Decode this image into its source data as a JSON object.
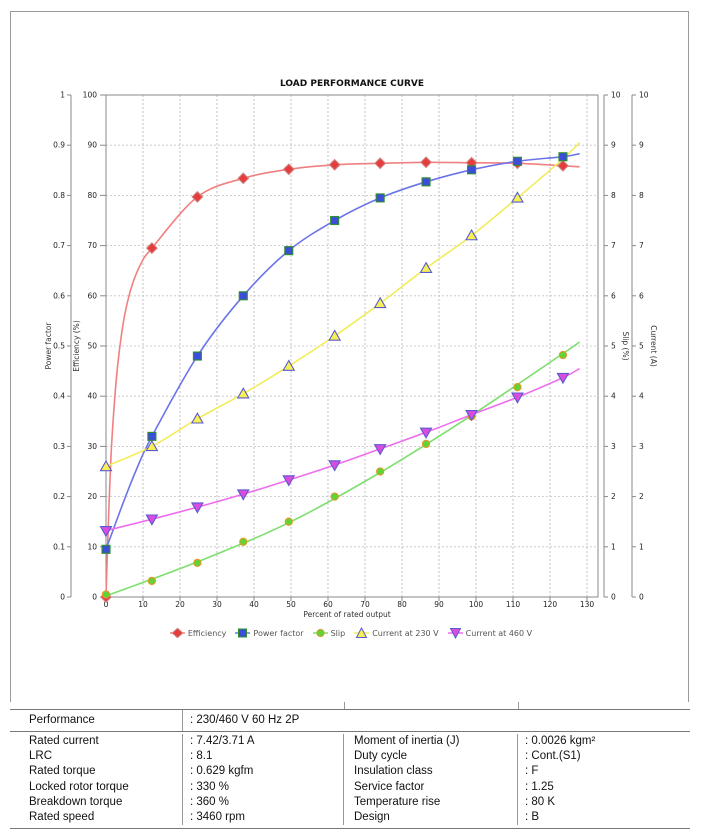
{
  "chart_data": {
    "type": "line",
    "title": "LOAD PERFORMANCE CURVE",
    "grid": true,
    "legend_position": "bottom",
    "x_axis": {
      "label": "Percent of rated output",
      "min": 0,
      "max": 130,
      "ticks": [
        0,
        10,
        20,
        30,
        40,
        50,
        60,
        70,
        80,
        90,
        100,
        110,
        120,
        130
      ]
    },
    "y_axes": [
      {
        "id": "pf",
        "label": "Power factor",
        "side": "left",
        "min": 0,
        "max": 1,
        "ticks": [
          0,
          0.1,
          0.2,
          0.3,
          0.4,
          0.5,
          0.6,
          0.7,
          0.8,
          0.9,
          1
        ]
      },
      {
        "id": "eff",
        "label": "Efficiency (%)",
        "side": "left",
        "min": 0,
        "max": 100,
        "ticks": [
          0,
          10,
          20,
          30,
          40,
          50,
          60,
          70,
          80,
          90,
          100
        ]
      },
      {
        "id": "slip",
        "label": "Slip (%)",
        "side": "right",
        "min": 0,
        "max": 10,
        "ticks": [
          0,
          1,
          2,
          3,
          4,
          5,
          6,
          7,
          8,
          9,
          10
        ]
      },
      {
        "id": "cur",
        "label": "Current (A)",
        "side": "right",
        "min": 0,
        "max": 10,
        "ticks": [
          0,
          1,
          2,
          3,
          4,
          5,
          6,
          7,
          8,
          9,
          10
        ]
      }
    ],
    "series": [
      {
        "name": "Efficiency",
        "axis": "eff",
        "marker": "diamond",
        "line_color": "#f08080",
        "marker_fill": "#e53c3c",
        "marker_stroke": "#cf8080",
        "points": [
          [
            0,
            0
          ],
          [
            12.4,
            69.5
          ],
          [
            24.7,
            79.7
          ],
          [
            37.1,
            83.4
          ],
          [
            49.4,
            85.2
          ],
          [
            61.8,
            86.1
          ],
          [
            74.1,
            86.4
          ],
          [
            86.5,
            86.6
          ],
          [
            98.8,
            86.5
          ],
          [
            111.2,
            86.4
          ],
          [
            123.5,
            85.9
          ]
        ],
        "curve": [
          [
            0,
            0
          ],
          [
            0.7,
            16
          ],
          [
            1.5,
            30
          ],
          [
            2.5,
            41
          ],
          [
            3.6,
            49
          ],
          [
            5,
            56
          ],
          [
            7,
            62
          ],
          [
            9.5,
            66.5
          ],
          [
            12.4,
            69.5
          ],
          [
            24.7,
            79.7
          ],
          [
            37.1,
            83.4
          ],
          [
            49.4,
            85.2
          ],
          [
            61.8,
            86.1
          ],
          [
            74.1,
            86.4
          ],
          [
            86.5,
            86.6
          ],
          [
            98.8,
            86.5
          ],
          [
            111.2,
            86.4
          ],
          [
            123.5,
            85.9
          ],
          [
            128,
            85.7
          ]
        ]
      },
      {
        "name": "Power factor",
        "axis": "pf",
        "marker": "square",
        "line_color": "#6b74e8",
        "marker_fill": "#3c4ed8",
        "marker_stroke": "#2f8f2f",
        "points": [
          [
            0,
            0.095
          ],
          [
            12.4,
            0.32
          ],
          [
            24.7,
            0.48
          ],
          [
            37.1,
            0.6
          ],
          [
            49.4,
            0.69
          ],
          [
            61.8,
            0.75
          ],
          [
            74.1,
            0.795
          ],
          [
            86.5,
            0.827
          ],
          [
            98.8,
            0.851
          ],
          [
            111.2,
            0.868
          ],
          [
            123.5,
            0.877
          ]
        ],
        "curve": [
          [
            0,
            0.095
          ],
          [
            4,
            0.175
          ],
          [
            8,
            0.25
          ],
          [
            12.4,
            0.32
          ],
          [
            24.7,
            0.48
          ],
          [
            37.1,
            0.6
          ],
          [
            49.4,
            0.69
          ],
          [
            61.8,
            0.75
          ],
          [
            74.1,
            0.795
          ],
          [
            86.5,
            0.827
          ],
          [
            98.8,
            0.851
          ],
          [
            111.2,
            0.868
          ],
          [
            123.5,
            0.877
          ],
          [
            128,
            0.883
          ]
        ]
      },
      {
        "name": "Slip",
        "axis": "slip",
        "marker": "circle",
        "line_color": "#7ddf6e",
        "marker_fill": "#5fd435",
        "marker_stroke": "#e09a28",
        "points": [
          [
            0,
            0.05
          ],
          [
            12.4,
            0.32
          ],
          [
            24.7,
            0.68
          ],
          [
            37.1,
            1.1
          ],
          [
            49.4,
            1.5
          ],
          [
            61.8,
            2.0
          ],
          [
            74.1,
            2.5
          ],
          [
            86.5,
            3.05
          ],
          [
            98.8,
            3.6
          ],
          [
            111.2,
            4.18
          ],
          [
            123.5,
            4.82
          ]
        ],
        "curve": [
          [
            0,
            0.02
          ],
          [
            24.7,
            0.7
          ],
          [
            49.4,
            1.48
          ],
          [
            74.1,
            2.48
          ],
          [
            98.8,
            3.62
          ],
          [
            123.5,
            4.85
          ],
          [
            128,
            5.08
          ]
        ]
      },
      {
        "name": "Current at 230 V",
        "axis": "cur",
        "marker": "triangle-up",
        "line_color": "#f3ec5a",
        "marker_fill": "#f6f054",
        "marker_stroke": "#5a5ad0",
        "points": [
          [
            0,
            2.6
          ],
          [
            12.4,
            3.0
          ],
          [
            24.7,
            3.55
          ],
          [
            37.1,
            4.05
          ],
          [
            49.4,
            4.6
          ],
          [
            61.8,
            5.2
          ],
          [
            74.1,
            5.85
          ],
          [
            86.5,
            6.55
          ],
          [
            98.8,
            7.2
          ],
          [
            111.2,
            7.95
          ]
        ],
        "curve": [
          [
            0,
            2.6
          ],
          [
            12.4,
            3.0
          ],
          [
            24.7,
            3.55
          ],
          [
            37.1,
            4.05
          ],
          [
            49.4,
            4.6
          ],
          [
            61.8,
            5.2
          ],
          [
            74.1,
            5.85
          ],
          [
            86.5,
            6.55
          ],
          [
            98.8,
            7.2
          ],
          [
            111.2,
            7.95
          ],
          [
            123.5,
            8.73
          ],
          [
            128,
            9.05
          ]
        ]
      },
      {
        "name": "Current at 460 V",
        "axis": "cur",
        "marker": "triangle-down",
        "line_color": "#ef6cef",
        "marker_fill": "#da4ce0",
        "marker_stroke": "#5a5ad0",
        "points": [
          [
            0,
            1.32
          ],
          [
            12.4,
            1.55
          ],
          [
            24.7,
            1.79
          ],
          [
            37.1,
            2.05
          ],
          [
            49.4,
            2.33
          ],
          [
            61.8,
            2.63
          ],
          [
            74.1,
            2.95
          ],
          [
            86.5,
            3.28
          ],
          [
            98.8,
            3.63
          ],
          [
            111.2,
            3.98
          ],
          [
            123.5,
            4.37
          ]
        ],
        "curve": [
          [
            0,
            1.32
          ],
          [
            12.4,
            1.55
          ],
          [
            24.7,
            1.79
          ],
          [
            37.1,
            2.05
          ],
          [
            49.4,
            2.33
          ],
          [
            61.8,
            2.63
          ],
          [
            74.1,
            2.95
          ],
          [
            86.5,
            3.28
          ],
          [
            98.8,
            3.63
          ],
          [
            111.2,
            3.98
          ],
          [
            123.5,
            4.37
          ],
          [
            128,
            4.55
          ]
        ]
      }
    ]
  },
  "spec_table": {
    "performance_label": "Performance",
    "performance_value": ": 230/460 V 60 Hz 2P",
    "left_rows": [
      {
        "label": "Rated current",
        "value": ": 7.42/3.71 A"
      },
      {
        "label": "LRC",
        "value": ": 8.1"
      },
      {
        "label": "Rated torque",
        "value": ": 0.629 kgfm"
      },
      {
        "label": "Locked rotor torque",
        "value": ": 330 %"
      },
      {
        "label": "Breakdown torque",
        "value": ": 360 %"
      },
      {
        "label": "Rated speed",
        "value": ": 3460 rpm"
      }
    ],
    "right_rows": [
      {
        "label": "Moment of inertia (J)",
        "value": ": 0.0026 kgm²"
      },
      {
        "label": "Duty cycle",
        "value": ": Cont.(S1)"
      },
      {
        "label": "Insulation class",
        "value": ": F"
      },
      {
        "label": "Service factor",
        "value": ": 1.25"
      },
      {
        "label": "Temperature rise",
        "value": ": 80 K"
      },
      {
        "label": "Design",
        "value": ": B"
      }
    ]
  }
}
